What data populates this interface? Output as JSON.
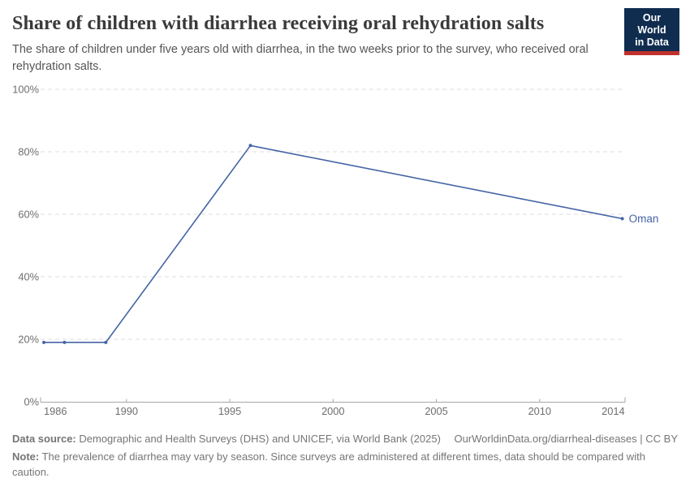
{
  "header": {
    "title": "Share of children with diarrhea receiving oral rehydration salts",
    "subtitle": "The share of children under five years old with diarrhea, in the two weeks prior to the survey, who received oral rehydration salts.",
    "logo": {
      "line1": "Our World",
      "line2": "in Data"
    }
  },
  "chart_data": {
    "type": "line",
    "title": "Share of children with diarrhea receiving oral rehydration salts",
    "xlabel": "",
    "ylabel": "",
    "xlim": [
      1986,
      2014
    ],
    "ylim": [
      0,
      100
    ],
    "grid": "horizontal-dashed",
    "legend_position": "end-of-line-label",
    "x_ticks": [
      1986,
      1990,
      1995,
      2000,
      2005,
      2010,
      2014
    ],
    "y_ticks": [
      {
        "value": 0,
        "label": "0%"
      },
      {
        "value": 20,
        "label": "20%"
      },
      {
        "value": 40,
        "label": "40%"
      },
      {
        "value": 60,
        "label": "60%"
      },
      {
        "value": 80,
        "label": "80%"
      },
      {
        "value": 100,
        "label": "100%"
      }
    ],
    "series": [
      {
        "name": "Oman",
        "color": "#4464a5",
        "points": [
          {
            "year": 1986,
            "value": 19
          },
          {
            "year": 1987,
            "value": 19
          },
          {
            "year": 1989,
            "value": 19
          },
          {
            "year": 1996,
            "value": 82
          },
          {
            "year": 2014,
            "value": 58.6
          }
        ]
      }
    ]
  },
  "footer": {
    "source_label": "Data source:",
    "source_text": "Demographic and Health Surveys (DHS) and UNICEF, via World Bank (2025)",
    "link": "OurWorldinData.org/diarrheal-diseases | CC BY",
    "note_label": "Note:",
    "note_text": "The prevalence of diarrhea may vary by season. Since surveys are administered at different times, data should be compared with caution."
  },
  "colors": {
    "line": "#4464a5",
    "logo_background": "#102d50",
    "logo_stripe": "#c0312e",
    "grid": "#dcdcdc",
    "axis": "#a6a6a6",
    "tick_text": "#6e6e6e"
  }
}
